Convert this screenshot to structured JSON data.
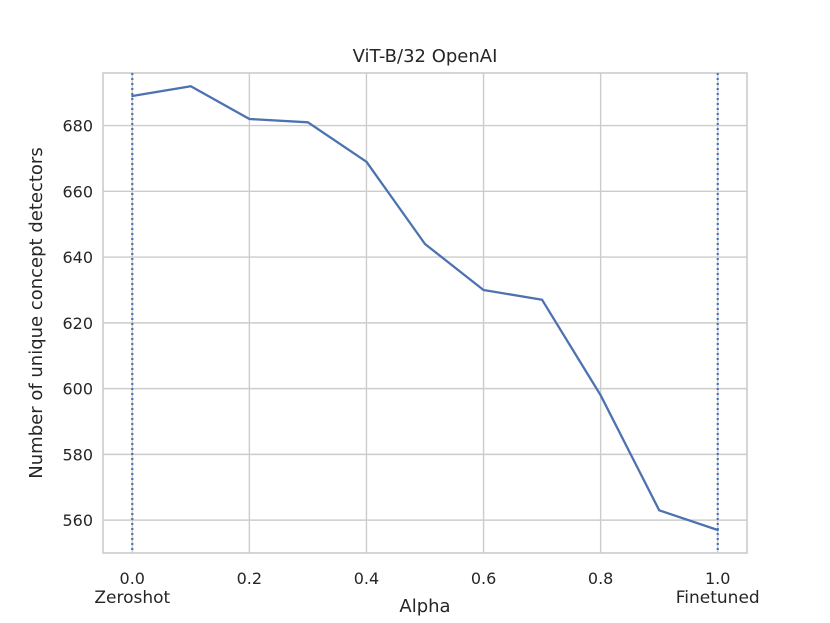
{
  "chart_data": {
    "type": "line",
    "title": "ViT-B/32 OpenAI",
    "xlabel": "Alpha",
    "ylabel": "Number of unique concept detectors",
    "xlim": [
      -0.05,
      1.05
    ],
    "ylim": [
      550,
      696
    ],
    "xticks": [
      0.0,
      0.2,
      0.4,
      0.6,
      0.8,
      1.0
    ],
    "xtick_labels": [
      "0.0",
      "0.2",
      "0.4",
      "0.6",
      "0.8",
      "1.0"
    ],
    "yticks": [
      560,
      580,
      600,
      620,
      640,
      660,
      680
    ],
    "ytick_labels": [
      "560",
      "580",
      "600",
      "620",
      "640",
      "660",
      "680"
    ],
    "grid": true,
    "series": [
      {
        "color": "#4c72b0",
        "x": [
          0.0,
          0.1,
          0.2,
          0.3,
          0.4,
          0.5,
          0.6,
          0.7,
          0.8,
          0.9,
          1.0
        ],
        "y": [
          689,
          692,
          682,
          681,
          669,
          644,
          630,
          627,
          598,
          563,
          557
        ]
      }
    ],
    "vertical_lines": [
      {
        "x": 0.0,
        "style": "dotted",
        "color": "#4c72b0"
      },
      {
        "x": 1.0,
        "style": "dotted",
        "color": "#4c72b0"
      }
    ],
    "annotations": [
      {
        "text": "Zeroshot",
        "x": 0.0
      },
      {
        "text": "Finetuned",
        "x": 1.0
      }
    ]
  }
}
